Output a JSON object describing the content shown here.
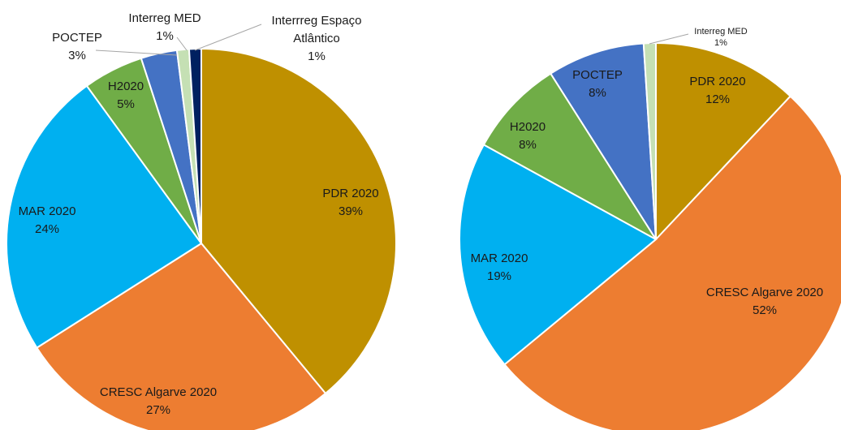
{
  "chart_data": [
    {
      "type": "pie",
      "categories": [
        "PDR 2020",
        "CRESC Algarve 2020",
        "MAR 2020",
        "H2020",
        "POCTEP",
        "Interreg MED",
        "Interrreg Espaço Atlântico"
      ],
      "values": [
        39,
        27,
        24,
        5,
        3,
        1,
        1
      ],
      "value_labels": [
        "39%",
        "27%",
        "24%",
        "5%",
        "3%",
        "1%",
        "1%"
      ],
      "colors": [
        "#bf9000",
        "#ed7d31",
        "#00b0f0",
        "#70ad47",
        "#4472c4",
        "#c5e0b4",
        "#002060"
      ]
    },
    {
      "type": "pie",
      "categories": [
        "PDR 2020",
        "CRESC Algarve 2020",
        "MAR 2020",
        "H2020",
        "POCTEP",
        "Interreg MED"
      ],
      "values": [
        12,
        52,
        19,
        8,
        8,
        1
      ],
      "value_labels": [
        "12%",
        "52%",
        "19%",
        "8%",
        "8%",
        "1%"
      ],
      "colors": [
        "#bf9000",
        "#ed7d31",
        "#00b0f0",
        "#70ad47",
        "#4472c4",
        "#c5e0b4"
      ]
    }
  ]
}
